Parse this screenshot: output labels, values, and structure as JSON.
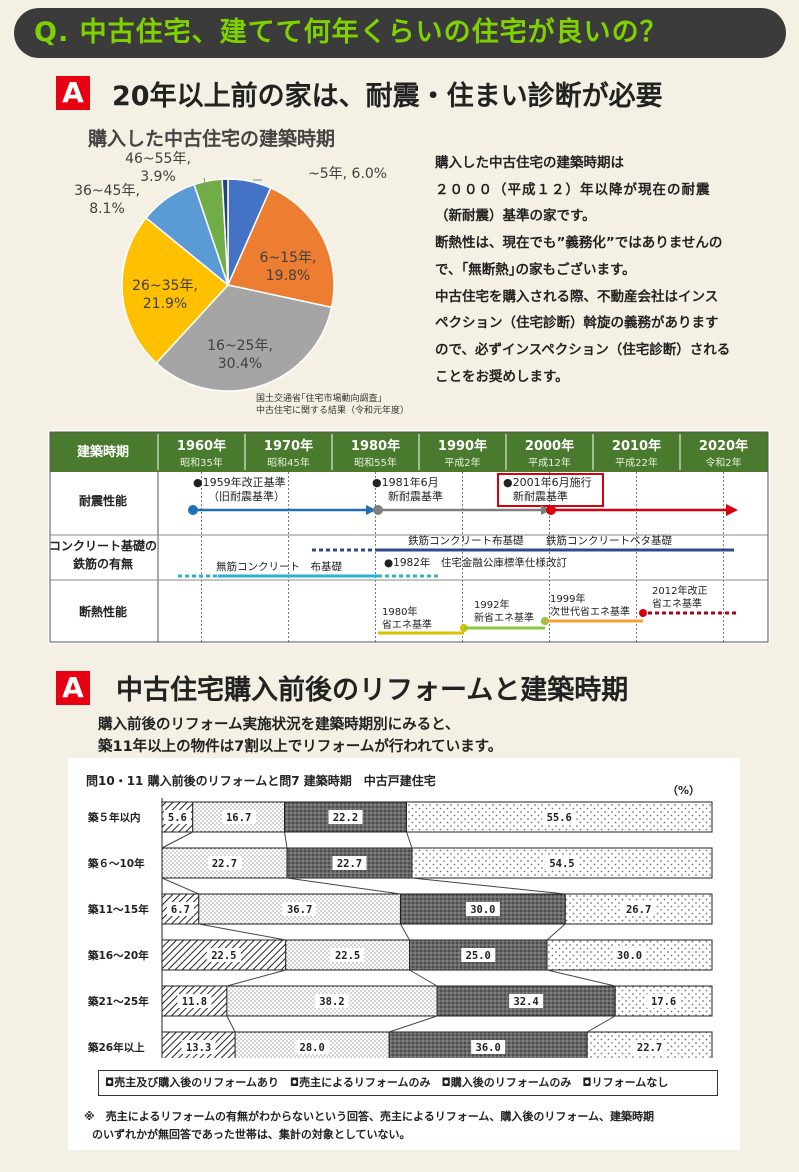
{
  "header": {
    "question": "Q.  中古住宅、建てて何年くらいの住宅が良いの？"
  },
  "section1": {
    "badge": "A",
    "title": "20年以上前の家は、耐震・住まい診断が必要",
    "description": [
      "購入した中古住宅の建築時期は",
      "２０００（平成１２）年以降が現在の耐震",
      "（新耐震）基準の家です。",
      "断熱性は、現在でも”義務化”ではありませんの",
      "で、｢無断熱｣の家もございます。",
      "中古住宅を購入される際、不動産会社はインス",
      "ペクション（住宅診断）斡旋の義務があります",
      "ので、必ずインスペクション（住宅診断）される",
      "ことをお奨めします。"
    ],
    "source": [
      "国土交通省｢住宅市場動向調査｣",
      "中古住宅に関する結果（令和元年度）"
    ]
  },
  "section2": {
    "badge": "A",
    "title": "中古住宅購入前後のリフォームと建築時期",
    "intro": [
      "購入前後のリフォーム実施状況を建築時期別にみると、",
      "築11年以上の物件は7割以上でリフォームが行われています。"
    ]
  },
  "timeline": {
    "header_label": "建築時期",
    "decades": [
      {
        "year": "1960年",
        "era": "昭和35年"
      },
      {
        "year": "1970年",
        "era": "昭和45年"
      },
      {
        "year": "1980年",
        "era": "昭和55年"
      },
      {
        "year": "1990年",
        "era": "平成2年"
      },
      {
        "year": "2000年",
        "era": "平成12年"
      },
      {
        "year": "2010年",
        "era": "平成22年"
      },
      {
        "year": "2020年",
        "era": "令和2年"
      }
    ],
    "rows": [
      "耐震性能",
      "コンクリート基礎の\n鉄筋の有無",
      "断熱性能"
    ],
    "quake_notes": [
      {
        "line1": "●1959年改正基準",
        "line2": "（旧耐震基準）"
      },
      {
        "line1": "●1981年6月",
        "line2": "新耐震基準"
      },
      {
        "line1": "●2001年6月施行",
        "line2": "新耐震基準"
      }
    ],
    "foundation_notes": {
      "rebar_strip": "鉄筋コンクリート布基礎",
      "rebar_mat": "鉄筋コンクリートベタ基礎",
      "no_rebar": "無筋コンクリート　布基礎",
      "kouko": "●1982年　住宅金融公庫標準仕様改訂"
    },
    "insulation_notes": [
      {
        "line1": "1980年",
        "line2": "省エネ基準"
      },
      {
        "line1": "1992年",
        "line2": "新省エネ基準"
      },
      {
        "line1": "1999年",
        "line2": "次世代省エネ基準"
      },
      {
        "line1": "2012年改正",
        "line2": "省エネ基準"
      }
    ],
    "colors": {
      "header_bg": "#4a7a2e",
      "blue": "#1f6fb5",
      "gray": "#7f7f7f",
      "red": "#d7000f",
      "cyan": "#2bb1d6",
      "navy": "#2f4b8f",
      "yellow": "#d9c200",
      "green": "#8dc63f",
      "orange": "#f0a030"
    }
  },
  "chart_data": [
    {
      "type": "pie",
      "title": "購入した中古住宅の建築時期",
      "slices": [
        {
          "label": "~5年",
          "value": 6.0,
          "display": "~5年, 6.0%",
          "color": "#4472c4"
        },
        {
          "label": "6~15年",
          "value": 19.8,
          "display": "6~15年,\n19.8%",
          "color": "#ed7d31"
        },
        {
          "label": "16~25年",
          "value": 30.4,
          "display": "16~25年,\n30.4%",
          "color": "#a5a5a5"
        },
        {
          "label": "26~35年",
          "value": 21.9,
          "display": "26~35年,\n21.9%",
          "color": "#ffc000"
        },
        {
          "label": "36~45年",
          "value": 8.1,
          "display": "36~45年,\n8.1%",
          "color": "#5b9bd5"
        },
        {
          "label": "46~55年",
          "value": 3.9,
          "display": "46~55年,\n3.9%",
          "color": "#70ad47"
        },
        {
          "label": "",
          "value": 0.8,
          "display": "",
          "color": "#264478"
        }
      ]
    },
    {
      "type": "bar",
      "stacked": true,
      "orientation": "horizontal",
      "title": "問10・11 購入前後のリフォームと問7 建築時期　中古戸建住宅",
      "unit": "（%）",
      "categories": [
        "築５年以内",
        "築６～10年",
        "築11～15年",
        "築16～20年",
        "築21～25年",
        "築26年以上"
      ],
      "series": [
        {
          "name": "売主及び購入後のリフォームあり",
          "values": [
            5.6,
            0,
            6.7,
            22.5,
            11.8,
            13.3
          ],
          "labels": [
            "5.6",
            "",
            "6.7",
            "22.5",
            "11.8",
            "13.3"
          ]
        },
        {
          "name": "売主によるリフォームのみ",
          "values": [
            16.7,
            22.7,
            36.7,
            22.5,
            38.2,
            28.0
          ],
          "labels": [
            "16.7",
            "22.7",
            "36.7",
            "22.5",
            "38.2",
            "28.0"
          ]
        },
        {
          "name": "購入後のリフォームのみ",
          "values": [
            22.2,
            22.7,
            30.0,
            25.0,
            32.4,
            36.0
          ],
          "labels": [
            "22.2",
            "22.7",
            "30.0",
            "25.0",
            "32.4",
            "36.0"
          ]
        },
        {
          "name": "リフォームなし",
          "values": [
            55.6,
            54.5,
            26.7,
            30.0,
            17.6,
            22.7
          ],
          "labels": [
            "55.6",
            "54.5",
            "26.7",
            "30.0",
            "17.6",
            "22.7"
          ]
        }
      ],
      "legend": "◘売主及び購入後のリフォームあり　◘売主によるリフォームのみ　◘購入後のリフォームのみ　◘リフォームなし",
      "note": [
        "※　売主によるリフォームの有無がわからないという回答、売主によるリフォーム、購入後のリフォーム、建築時期",
        "のいずれかが無回答であった世帯は、集計の対象としていない。"
      ]
    }
  ]
}
